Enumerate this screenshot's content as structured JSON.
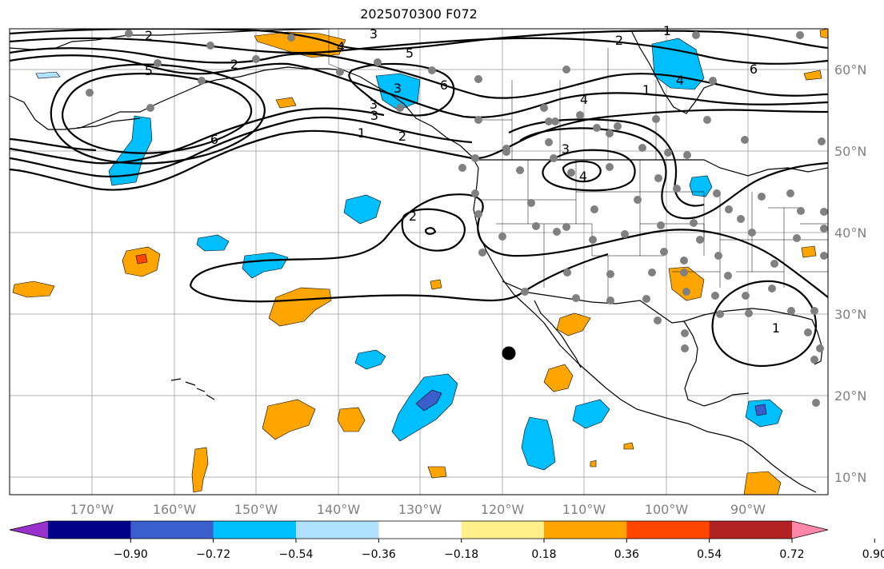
{
  "title": "2025070300 F072",
  "map": {
    "lat_labels": [
      "60°N",
      "50°N",
      "40°N",
      "30°N",
      "20°N",
      "10°N"
    ],
    "lon_labels": [
      "170°W",
      "160°W",
      "150°W",
      "140°W",
      "130°W",
      "120°W",
      "110°W",
      "100°W",
      "90°W"
    ],
    "contour_labels": [
      "2",
      "3",
      "4",
      "5",
      "6",
      "1",
      "2",
      "3",
      "4",
      "5",
      "6",
      "6",
      "1",
      "2",
      "3",
      "2",
      "3",
      "4",
      "4",
      "1",
      "2",
      "1",
      "3"
    ],
    "colors": {
      "land_outline": "#000000",
      "gridline": "#b0b0b0",
      "station_marker": "#808080",
      "highlight_marker": "#000000"
    }
  },
  "colorbar": {
    "tick_labels": [
      "−0.90",
      "−0.72",
      "−0.54",
      "−0.36",
      "−0.18",
      "0.18",
      "0.36",
      "0.54",
      "0.72",
      "0.90"
    ],
    "segment_colors": [
      "#9932cc",
      "#00008b",
      "#3a5fcd",
      "#00bfff",
      "#b0e2ff",
      "#ffffff",
      "#fff08c",
      "#ffa500",
      "#ff4500",
      "#b22222",
      "#ff88aa"
    ]
  }
}
